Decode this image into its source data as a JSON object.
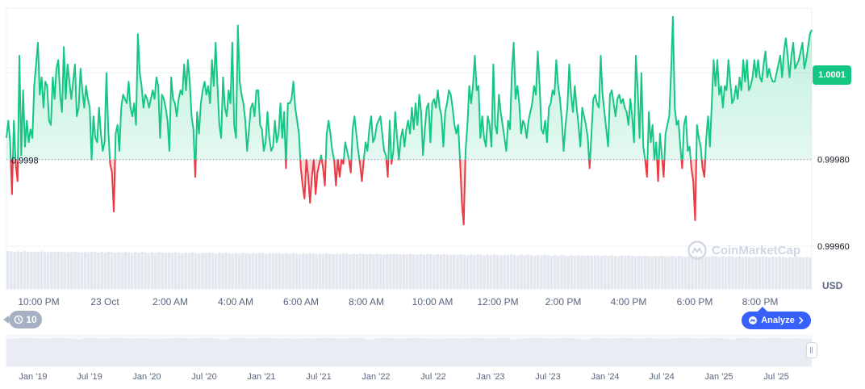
{
  "currency": "USD",
  "current_price_label": "1.0001",
  "reference_price_label": "0.9998",
  "history_count": "10",
  "analyze_label": "Analyze",
  "watermark": "CoinMarketCap",
  "colors": {
    "up": "#16c784",
    "down": "#ea3943",
    "grid": "#eff2f5",
    "axis_text": "#58667e",
    "accent": "#3861fb",
    "volume": "#e3e7ee"
  },
  "chart_data": [
    {
      "type": "line",
      "title": "",
      "xlabel": "",
      "ylabel": "",
      "ylim": [
        0.9996,
        1.00015
      ],
      "y_ticks": [
        "1.0000",
        "0.99980",
        "0.99960"
      ],
      "y_tick_values": [
        1.0,
        0.9998,
        0.9996
      ],
      "x_tick_labels": [
        "10:00 PM",
        "23 Oct",
        "2:00 AM",
        "4:00 AM",
        "6:00 AM",
        "8:00 AM",
        "10:00 AM",
        "12:00 PM",
        "2:00 PM",
        "4:00 PM",
        "6:00 PM",
        "8:00 PM"
      ],
      "baseline": 0.9998,
      "grid": true,
      "series": [
        {
          "values": [
            0.99985,
            0.99989,
            0.99984,
            0.99972,
            0.99989,
            0.99979,
            0.99975,
            1.00004,
            0.99981,
            0.99996,
            0.99983,
            0.99989,
            0.99984,
            0.99987,
            0.99985,
            0.99997,
            1.00002,
            1.00007,
            0.99995,
            0.99999,
            0.99992,
            0.99998,
            0.99997,
            0.99989,
            0.99988,
            0.99999,
            0.99994,
            1.00001,
            1.00003,
            0.99995,
            0.99991,
            1.00006,
            0.99994,
            1.00002,
            0.99998,
            0.99994,
            0.99998,
            1.00002,
            0.9999,
            0.99992,
            1.00001,
            0.99996,
            0.99992,
            0.99997,
            0.99994,
            0.99992,
            0.9998,
            0.9999,
            0.99985,
            0.99984,
            0.99992,
            0.99986,
            0.99982,
            0.99984,
            1.0,
            0.99987,
            0.99979,
            0.99977,
            0.99968,
            0.99986,
            0.99988,
            0.99982,
            0.99992,
            0.99995,
            0.99994,
            0.99993,
            0.99998,
            0.99992,
            0.9999,
            0.99993,
            0.99988,
            1.00009,
            1.0,
            0.99997,
            0.99992,
            0.99995,
            0.99994,
            0.99992,
            0.99994,
            0.99996,
            0.99994,
            0.99999,
            0.99997,
            0.99985,
            0.99995,
            0.99994,
            0.99992,
            0.99989,
            0.99982,
            0.99999,
            0.99994,
            0.99993,
            0.9999,
            0.99994,
            0.99996,
            0.99995,
            1.00002,
            0.99996,
            1.00003,
            0.99998,
            0.9999,
            0.99987,
            0.99976,
            0.99991,
            0.99986,
            0.99993,
            0.99996,
            0.99998,
            0.99995,
            0.99997,
            0.99993,
            1.00003,
            0.99997,
            1.00007,
            0.99997,
            0.99988,
            0.99985,
            0.99999,
            0.99992,
            0.9999,
            0.99996,
            0.99993,
            1.00007,
            0.99988,
            0.99985,
            1.00011,
            0.99998,
            0.99995,
            0.99993,
            0.99989,
            0.99982,
            0.99987,
            0.99992,
            0.99993,
            0.9999,
            0.99996,
            0.99996,
            0.99988,
            0.99987,
            0.99982,
            0.99984,
            0.99991,
            0.99985,
            0.99982,
            0.99983,
            0.99989,
            0.99984,
            0.99986,
            0.99993,
            0.99985,
            0.99991,
            0.99978,
            0.99993,
            0.99993,
            0.99994,
            0.99998,
            0.99992,
            0.99989,
            0.99986,
            0.99978,
            0.99974,
            0.99971,
            0.9998,
            0.99976,
            0.9997,
            0.99976,
            0.9998,
            0.99972,
            0.99977,
            0.99979,
            0.99981,
            0.99978,
            0.99974,
            0.99986,
            0.99989,
            0.99986,
            0.99982,
            0.9998,
            0.99974,
            0.9998,
            0.99976,
            0.9998,
            0.99979,
            0.99984,
            0.99982,
            0.9998,
            0.99977,
            0.99987,
            0.9999,
            0.99986,
            0.99982,
            0.99979,
            0.99975,
            0.9998,
            0.99984,
            0.99982,
            0.99987,
            0.9999,
            0.99984,
            0.99985,
            0.99988,
            0.99989,
            0.9999,
            0.99986,
            0.99982,
            0.99981,
            0.99976,
            0.99989,
            0.99979,
            0.99982,
            0.99991,
            0.99985,
            0.9998,
            0.99985,
            0.99987,
            0.99983,
            0.99987,
            0.99989,
            0.99986,
            0.99992,
            0.99987,
            0.99993,
            0.99988,
            0.99995,
            0.99991,
            0.99981,
            0.99987,
            0.99992,
            0.99993,
            0.99984,
            0.99993,
            0.99994,
            0.99992,
            0.99996,
            0.99992,
            0.9999,
            0.99983,
            0.99991,
            0.99993,
            0.99996,
            0.99995,
            0.99992,
            0.99988,
            0.99986,
            0.99988,
            0.9998,
            0.9997,
            0.99965,
            0.99982,
            0.99988,
            0.99997,
            0.99993,
            0.99997,
            1.00004,
            0.99996,
            0.99997,
            0.99985,
            0.9999,
            0.99985,
            0.99983,
            0.9999,
            0.99988,
            0.99983,
            1.00002,
            0.99988,
            0.99986,
            0.99995,
            0.99991,
            0.99988,
            0.99985,
            0.99982,
            0.99989,
            0.99987,
            1.0,
            1.00007,
            0.99994,
            0.99997,
            0.99993,
            0.99986,
            0.99989,
            0.99988,
            0.99985,
            0.99989,
            0.99991,
            0.99993,
            0.99997,
            0.99995,
            1.00005,
            0.99997,
            0.99987,
            0.99986,
            0.99989,
            0.99984,
            0.99992,
            0.99993,
            0.99996,
            0.99995,
            1.00003,
            0.99997,
            0.99994,
            0.99989,
            0.99982,
            0.99988,
            0.99992,
            1.00002,
            0.99995,
            0.99991,
            0.99997,
            0.99992,
            0.99988,
            0.99983,
            0.99992,
            0.9999,
            0.99988,
            0.99985,
            0.99978,
            0.99986,
            0.99994,
            0.99995,
            0.99993,
            0.99992,
            1.00004,
            0.99995,
            0.99991,
            0.99987,
            0.99983,
            0.99995,
            0.99996,
            0.99993,
            0.9999,
            0.99994,
            0.99995,
            0.99993,
            0.99994,
            0.99992,
            0.99991,
            0.99988,
            0.99994,
            0.9999,
            0.99984,
            1.00004,
            0.99996,
            0.99985,
            1.0,
            0.99983,
            0.9998,
            0.99976,
            0.99991,
            0.99984,
            0.99988,
            0.9998,
            0.99984,
            0.99975,
            0.99986,
            0.99981,
            0.99976,
            0.99986,
            0.99988,
            0.9999,
            1.0,
            1.00013,
            0.99992,
            0.99988,
            0.99989,
            0.99983,
            0.99978,
            0.99988,
            0.9999,
            0.99982,
            0.99983,
            0.99978,
            0.99975,
            0.99966,
            0.99988,
            0.99985,
            0.99983,
            0.99978,
            0.99976,
            0.99985,
            0.9999,
            0.99983,
            0.99993,
            1.00003,
            0.99997,
            1.00003,
            0.99995,
            0.99997,
            0.99992,
            0.99997,
            0.99996,
            1.00003,
            0.99998,
            0.99993,
            0.99994,
            0.99997,
            0.99994,
            0.99999,
            0.99996,
            1.00003,
            0.99998,
            1.00003,
            0.99996,
            0.99997,
            0.99999,
            1.00003,
            0.99999,
            1.00003,
            0.99999,
            0.99998,
            1.00002,
            1.00005,
            0.99999,
            1.00001,
            0.99999,
            0.99998,
            0.99998,
            1.0,
            1.00002,
            1.00004,
            0.99999,
            1.00005,
            1.00008,
            1.00004,
            0.99999,
            1.00004,
            1.00007,
            1.00001,
            1.00002,
            1.00003,
            1.00005,
            1.00007,
            1.00001,
            1.00003,
            1.00006,
            1.00009,
            1.0001
          ]
        }
      ]
    },
    {
      "type": "area",
      "title": "",
      "x_tick_labels": [
        "Jan '19",
        "Jul '19",
        "Jan '20",
        "Jul '20",
        "Jan '21",
        "Jul '21",
        "Jan '22",
        "Jul '22",
        "Jan '23",
        "Jul '23",
        "Jan '24",
        "Jul '24",
        "Jan '25",
        "Jul '25"
      ]
    }
  ]
}
